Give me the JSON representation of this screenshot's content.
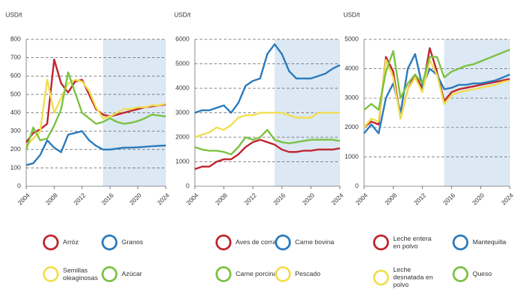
{
  "chart_data": [
    {
      "type": "line",
      "y_label": "USD/t",
      "x": [
        2004,
        2005,
        2006,
        2007,
        2008,
        2009,
        2010,
        2011,
        2012,
        2013,
        2014,
        2015,
        2016,
        2017,
        2018,
        2019,
        2020,
        2021,
        2022,
        2023,
        2024
      ],
      "xlim": [
        2004,
        2024
      ],
      "xticks": [
        2004,
        2008,
        2012,
        2016,
        2020,
        2024
      ],
      "ylim": [
        0,
        800
      ],
      "yticks": [
        0,
        100,
        200,
        300,
        400,
        500,
        600,
        700,
        800
      ],
      "grid": true,
      "projection_start": 2015,
      "series": [
        {
          "name": "Arróz",
          "color": "#c0262d",
          "values": [
            240,
            290,
            310,
            340,
            690,
            560,
            510,
            570,
            580,
            500,
            420,
            390,
            380,
            390,
            400,
            410,
            420,
            430,
            435,
            440,
            445
          ]
        },
        {
          "name": "Granos",
          "color": "#2b7bbd",
          "values": [
            115,
            125,
            170,
            250,
            210,
            185,
            280,
            290,
            300,
            250,
            220,
            200,
            200,
            205,
            210,
            210,
            212,
            215,
            218,
            220,
            222
          ]
        },
        {
          "name": "Semillas oleaginosas",
          "color": "#f2de4f",
          "values": [
            220,
            260,
            300,
            580,
            400,
            480,
            560,
            580,
            570,
            520,
            430,
            370,
            380,
            400,
            420,
            420,
            430,
            430,
            440,
            440,
            450
          ]
        },
        {
          "name": "Azúcar",
          "color": "#7cc242",
          "values": [
            200,
            320,
            250,
            260,
            330,
            420,
            620,
            510,
            400,
            370,
            340,
            350,
            370,
            350,
            340,
            345,
            355,
            370,
            390,
            385,
            380
          ]
        }
      ]
    },
    {
      "type": "line",
      "y_label": "USD/t",
      "x": [
        2004,
        2005,
        2006,
        2007,
        2008,
        2009,
        2010,
        2011,
        2012,
        2013,
        2014,
        2015,
        2016,
        2017,
        2018,
        2019,
        2020,
        2021,
        2022,
        2023,
        2024
      ],
      "xlim": [
        2004,
        2024
      ],
      "xticks": [
        2004,
        2008,
        2012,
        2016,
        2020,
        2024
      ],
      "ylim": [
        0,
        6000
      ],
      "yticks": [
        0,
        1000,
        2000,
        3000,
        4000,
        5000,
        6000
      ],
      "grid": true,
      "projection_start": 2015,
      "series": [
        {
          "name": "Aves de corral",
          "color": "#c0262d",
          "values": [
            700,
            800,
            800,
            1000,
            1100,
            1100,
            1300,
            1600,
            1800,
            1900,
            1800,
            1700,
            1500,
            1400,
            1400,
            1450,
            1450,
            1500,
            1500,
            1500,
            1550
          ]
        },
        {
          "name": "Carne bovina",
          "color": "#2b7bbd",
          "values": [
            3000,
            3100,
            3100,
            3200,
            3300,
            3000,
            3400,
            4100,
            4300,
            4400,
            5400,
            5800,
            5400,
            4700,
            4400,
            4400,
            4400,
            4500,
            4600,
            4800,
            4950
          ]
        },
        {
          "name": "Carne porcina",
          "color": "#7cc242",
          "values": [
            1600,
            1500,
            1450,
            1450,
            1400,
            1300,
            1600,
            2000,
            1900,
            2000,
            2300,
            1900,
            1800,
            1750,
            1800,
            1850,
            1900,
            1900,
            1900,
            1900,
            1850
          ]
        },
        {
          "name": "Pescado",
          "color": "#f2de4f",
          "values": [
            2000,
            2100,
            2200,
            2400,
            2300,
            2500,
            2800,
            2900,
            2900,
            3000,
            3000,
            3000,
            3000,
            2900,
            2800,
            2800,
            2800,
            3000,
            3000,
            3000,
            3000
          ]
        }
      ]
    },
    {
      "type": "line",
      "y_label": "USD/t",
      "x": [
        2004,
        2005,
        2006,
        2007,
        2008,
        2009,
        2010,
        2011,
        2012,
        2013,
        2014,
        2015,
        2016,
        2017,
        2018,
        2019,
        2020,
        2021,
        2022,
        2023,
        2024
      ],
      "xlim": [
        2004,
        2024
      ],
      "xticks": [
        2004,
        2008,
        2012,
        2016,
        2020,
        2024
      ],
      "ylim": [
        0,
        5000
      ],
      "yticks": [
        0,
        1000,
        2000,
        3000,
        4000,
        5000
      ],
      "grid": true,
      "projection_start": 2015,
      "series": [
        {
          "name": "Leche entera en polvo",
          "color": "#c0262d",
          "values": [
            2000,
            2200,
            2100,
            4400,
            3900,
            2300,
            3300,
            3800,
            3300,
            4700,
            3900,
            2900,
            3200,
            3300,
            3350,
            3400,
            3450,
            3500,
            3550,
            3600,
            3650
          ]
        },
        {
          "name": "Mantequilla",
          "color": "#2b7bbd",
          "values": [
            1800,
            2100,
            1800,
            3000,
            3500,
            2500,
            4000,
            4500,
            3400,
            4000,
            3800,
            3300,
            3350,
            3450,
            3450,
            3500,
            3500,
            3550,
            3600,
            3700,
            3800
          ]
        },
        {
          "name": "Leche desnatada en polvo",
          "color": "#f2de4f",
          "values": [
            2000,
            2300,
            2200,
            4300,
            3700,
            2300,
            3300,
            3700,
            3200,
            4300,
            3800,
            2800,
            3100,
            3200,
            3250,
            3300,
            3350,
            3400,
            3450,
            3550,
            3600
          ]
        },
        {
          "name": "Queso",
          "color": "#7cc242",
          "values": [
            2600,
            2800,
            2600,
            3900,
            4600,
            3000,
            3500,
            3800,
            3500,
            4400,
            4400,
            3700,
            3900,
            4000,
            4100,
            4150,
            4250,
            4350,
            4450,
            4550,
            4650
          ]
        }
      ]
    }
  ]
}
